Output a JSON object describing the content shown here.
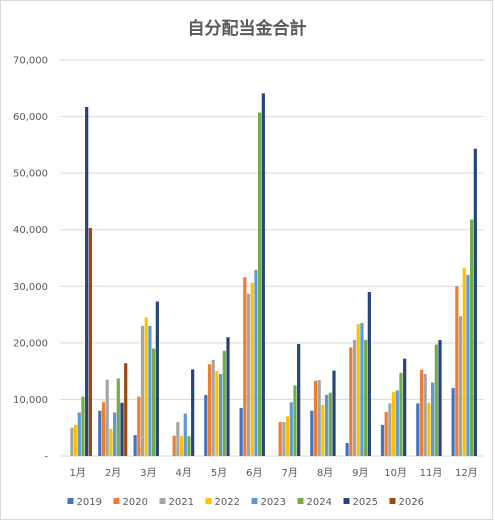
{
  "chart_data": {
    "type": "bar",
    "title": "自分配当金合計",
    "xlabel": "",
    "ylabel": "",
    "ylim": [
      0,
      70000
    ],
    "yticks": [
      "-",
      "10,000",
      "20,000",
      "30,000",
      "40,000",
      "50,000",
      "60,000",
      "70,000"
    ],
    "grid": true,
    "legend_position": "bottom",
    "categories": [
      "1月",
      "2月",
      "3月",
      "4月",
      "5月",
      "6月",
      "7月",
      "8月",
      "9月",
      "10月",
      "11月",
      "12月"
    ],
    "series": [
      {
        "name": "2019",
        "color": "#4472c4",
        "values": [
          0,
          8000,
          3700,
          0,
          10800,
          8500,
          0,
          8000,
          2300,
          5500,
          9300,
          12000
        ]
      },
      {
        "name": "2020",
        "color": "#ed7d31",
        "values": [
          0,
          9500,
          10500,
          3600,
          16200,
          31600,
          6000,
          13300,
          19200,
          7800,
          15200,
          30000
        ]
      },
      {
        "name": "2021",
        "color": "#a5a5a5",
        "values": [
          5000,
          13500,
          23000,
          6000,
          17000,
          28700,
          6000,
          13400,
          20500,
          9300,
          14500,
          24700
        ]
      },
      {
        "name": "2022",
        "color": "#ffc000",
        "values": [
          5500,
          4800,
          24500,
          3500,
          15000,
          30600,
          7000,
          9000,
          23300,
          11300,
          9400,
          33200
        ]
      },
      {
        "name": "2023",
        "color": "#5b9bd5",
        "values": [
          7700,
          7700,
          23000,
          7500,
          14500,
          32900,
          9500,
          10800,
          23500,
          11600,
          13000,
          32000
        ]
      },
      {
        "name": "2024",
        "color": "#70ad47",
        "values": [
          10500,
          13700,
          19000,
          3500,
          18600,
          60700,
          12500,
          11200,
          20500,
          14700,
          19700,
          41800
        ]
      },
      {
        "name": "2025",
        "color": "#264478",
        "values": [
          61700,
          9400,
          27300,
          15300,
          21000,
          64100,
          19800,
          15100,
          29000,
          17200,
          20500,
          54300
        ]
      },
      {
        "name": "2026",
        "color": "#9e480e",
        "values": [
          40300,
          16400,
          0,
          0,
          0,
          0,
          0,
          0,
          0,
          0,
          0,
          0
        ]
      }
    ]
  }
}
